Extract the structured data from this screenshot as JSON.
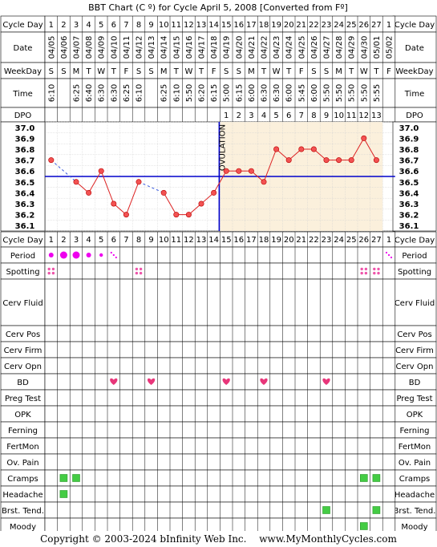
{
  "title": "BBT Chart (C º) for Cycle April 5, 2008  [Converted from Fº]",
  "footer": {
    "copyright": "Copyright © 2003-2024 bInfinity Web Inc.",
    "site": "www.MyMonthlyCycles.com"
  },
  "labels": {
    "cycle_day": "Cycle Day",
    "date": "Date",
    "weekday": "WeekDay",
    "time": "Time",
    "dpo": "DPO",
    "ovulation": "OVULATION"
  },
  "colors": {
    "line": "#dd2222",
    "point_fill": "#f25252",
    "coverline": "#0000cc",
    "missing": "#3355dd",
    "luteal_bg": "#fbf0dc",
    "period": "#ee00ee",
    "spotting": "#ee55aa",
    "heart": "#e8367a",
    "symptom": "#44cc44"
  },
  "chart_data": {
    "type": "line",
    "title": "BBT Chart (C º) for Cycle April 5, 2008  [Converted from Fº]",
    "cycle_days": [
      "1",
      "2",
      "3",
      "4",
      "5",
      "6",
      "7",
      "8",
      "9",
      "10",
      "11",
      "12",
      "13",
      "14",
      "15",
      "16",
      "17",
      "18",
      "19",
      "20",
      "21",
      "22",
      "23",
      "24",
      "25",
      "26",
      "27",
      "1"
    ],
    "dates": [
      "04/05",
      "04/06",
      "04/07",
      "04/08",
      "04/09",
      "04/10",
      "04/11",
      "04/12",
      "04/13",
      "04/14",
      "04/15",
      "04/16",
      "04/17",
      "04/18",
      "04/19",
      "04/20",
      "04/21",
      "04/22",
      "04/23",
      "04/24",
      "04/25",
      "04/26",
      "04/27",
      "04/28",
      "04/29",
      "04/30",
      "05/01",
      "05/02"
    ],
    "weekdays": [
      "S",
      "S",
      "M",
      "T",
      "W",
      "T",
      "F",
      "S",
      "S",
      "M",
      "T",
      "W",
      "T",
      "F",
      "S",
      "S",
      "M",
      "T",
      "W",
      "T",
      "F",
      "S",
      "S",
      "M",
      "T",
      "W",
      "T",
      "F"
    ],
    "times": [
      "6:10",
      "",
      "6:25",
      "6:40",
      "6:30",
      "6:30",
      "6:25",
      "6:10",
      "",
      "6:25",
      "6:10",
      "5:50",
      "6:20",
      "6:15",
      "5:00",
      "6:15",
      "6:00",
      "6:30",
      "6:30",
      "6:00",
      "5:45",
      "6:00",
      "5:50",
      "5:50",
      "5:50",
      "5:50",
      "5:55",
      ""
    ],
    "dpo": [
      "",
      "",
      "",
      "",
      "",
      "",
      "",
      "",
      "",
      "",
      "",
      "",
      "",
      "",
      "1",
      "2",
      "3",
      "4",
      "5",
      "6",
      "7",
      "8",
      "9",
      "10",
      "11",
      "12",
      "13",
      ""
    ],
    "temps": [
      36.7,
      null,
      36.5,
      36.4,
      36.6,
      36.3,
      36.2,
      36.5,
      null,
      36.4,
      36.2,
      36.2,
      36.3,
      36.4,
      36.6,
      36.6,
      36.6,
      36.5,
      36.8,
      36.7,
      36.8,
      36.8,
      36.7,
      36.7,
      36.7,
      36.9,
      36.7,
      null
    ],
    "yticks": [
      "37.0",
      "36.9",
      "36.8",
      "36.7",
      "36.6",
      "36.5",
      "36.4",
      "36.3",
      "36.2",
      "36.1"
    ],
    "ylim": [
      36.1,
      37.0
    ],
    "coverline": 36.6,
    "ovulation_day": 14
  },
  "observations": {
    "period": [
      "medium",
      "heavy",
      "heavy",
      "medium",
      "light",
      "spotting",
      "",
      "",
      "",
      "",
      "",
      "",
      "",
      "",
      "",
      "",
      "",
      "",
      "",
      "",
      "",
      "",
      "",
      "",
      "",
      "",
      "",
      "spotting"
    ],
    "spotting_days": [
      1,
      8,
      26,
      27
    ],
    "bd_days": [
      6,
      9,
      15,
      18,
      23
    ],
    "cramps_days": [
      2,
      3,
      26,
      27
    ],
    "headache_days": [
      2
    ],
    "brst_tend_days": [
      23,
      27
    ],
    "moody_days": [
      26
    ]
  },
  "rows": [
    {
      "key": "cervfluid",
      "label": "Cerv Fluid"
    },
    {
      "key": "cervpos",
      "label": "Cerv Pos"
    },
    {
      "key": "cervfirm",
      "label": "Cerv Firm"
    },
    {
      "key": "cervopn",
      "label": "Cerv Opn"
    },
    {
      "key": "bd",
      "label": "BD"
    },
    {
      "key": "pregtest",
      "label": "Preg Test"
    },
    {
      "key": "opk",
      "label": "OPK"
    },
    {
      "key": "ferning",
      "label": "Ferning"
    },
    {
      "key": "fertmon",
      "label": "FertMon"
    },
    {
      "key": "ovpain",
      "label": "Ov. Pain"
    },
    {
      "key": "cramps",
      "label": "Cramps"
    },
    {
      "key": "headache",
      "label": "Headache"
    },
    {
      "key": "brsttend",
      "label": "Brst. Tend."
    },
    {
      "key": "moody",
      "label": "Moody"
    }
  ],
  "extra_labels": {
    "period": "Period",
    "spotting": "Spotting"
  }
}
